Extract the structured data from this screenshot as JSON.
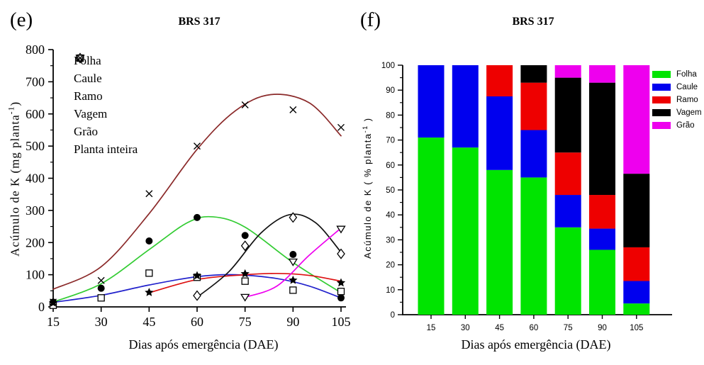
{
  "figure": {
    "background": "#ffffff",
    "text_color": "#000000"
  },
  "chart_data": [
    {
      "type": "scatter",
      "panel_label": "(e)",
      "title": "BRS 317",
      "xlabel": "Dias após emergência (DAE)",
      "ylabel_main": "Acúmulo de K (mg planta",
      "ylabel_sup": "-1",
      "ylabel_end": ")",
      "xlim": [
        15,
        105
      ],
      "ylim": [
        0,
        800
      ],
      "xticks": [
        15,
        30,
        45,
        60,
        75,
        90,
        105
      ],
      "yticks": [
        0,
        100,
        200,
        300,
        400,
        500,
        600,
        700,
        800
      ],
      "y_minor_step": 50,
      "grid": "off",
      "legend_position": "top-left-inside",
      "series": [
        {
          "name": "Folha",
          "marker": "circle-filled",
          "marker_color": "#000000",
          "line_color": "#33cc33",
          "points": [
            [
              15,
              15
            ],
            [
              30,
              58
            ],
            [
              45,
              205
            ],
            [
              60,
              278
            ],
            [
              75,
              222
            ],
            [
              90,
              163
            ],
            [
              105,
              28
            ]
          ],
          "curve": [
            [
              15,
              15
            ],
            [
              30,
              72
            ],
            [
              45,
              178
            ],
            [
              57,
              262
            ],
            [
              65,
              280
            ],
            [
              75,
              248
            ],
            [
              90,
              138
            ],
            [
              105,
              44
            ]
          ]
        },
        {
          "name": "Caule",
          "marker": "square-open",
          "marker_color": "#000000",
          "line_color": "#2222cc",
          "points": [
            [
              15,
              5
            ],
            [
              30,
              28
            ],
            [
              45,
              105
            ],
            [
              60,
              92
            ],
            [
              75,
              80
            ],
            [
              90,
              52
            ],
            [
              105,
              48
            ]
          ],
          "curve": [
            [
              15,
              14
            ],
            [
              30,
              36
            ],
            [
              45,
              68
            ],
            [
              60,
              94
            ],
            [
              72,
              100
            ],
            [
              85,
              88
            ],
            [
              95,
              65
            ],
            [
              105,
              28
            ]
          ]
        },
        {
          "name": "Ramo",
          "marker": "star-filled",
          "marker_color": "#000000",
          "line_color": "#dd1111",
          "points": [
            [
              15,
              12
            ],
            [
              45,
              45
            ],
            [
              60,
              97
            ],
            [
              75,
              103
            ],
            [
              90,
              83
            ],
            [
              105,
              75
            ]
          ],
          "curve": [
            [
              45,
              44
            ],
            [
              60,
              85
            ],
            [
              75,
              100
            ],
            [
              85,
              104
            ],
            [
              95,
              98
            ],
            [
              105,
              80
            ]
          ]
        },
        {
          "name": "Vagem",
          "marker": "diamond-open",
          "marker_color": "#000000",
          "line_color": "#111111",
          "points": [
            [
              60,
              35
            ],
            [
              75,
              190
            ],
            [
              90,
              278
            ],
            [
              105,
              165
            ]
          ],
          "curve": [
            [
              60,
              30
            ],
            [
              70,
              110
            ],
            [
              80,
              230
            ],
            [
              89,
              287
            ],
            [
              97,
              262
            ],
            [
              105,
              170
            ]
          ]
        },
        {
          "name": "Grão",
          "marker": "triangle-down-open",
          "marker_color": "#000000",
          "line_color": "#ee00ee",
          "points": [
            [
              75,
              30
            ],
            [
              90,
              140
            ],
            [
              105,
              242
            ]
          ],
          "curve": [
            [
              75,
              30
            ],
            [
              85,
              65
            ],
            [
              95,
              160
            ],
            [
              105,
              245
            ]
          ]
        },
        {
          "name": "Planta inteira",
          "marker": "x-cross",
          "marker_color": "#000000",
          "line_color": "#8b2a2a",
          "points": [
            [
              15,
              15
            ],
            [
              30,
              82
            ],
            [
              45,
              352
            ],
            [
              60,
              500
            ],
            [
              75,
              628
            ],
            [
              90,
              613
            ],
            [
              105,
              558
            ]
          ],
          "curve": [
            [
              15,
              55
            ],
            [
              30,
              125
            ],
            [
              45,
              290
            ],
            [
              60,
              490
            ],
            [
              72,
              610
            ],
            [
              83,
              660
            ],
            [
              95,
              635
            ],
            [
              105,
              532
            ]
          ]
        }
      ]
    },
    {
      "type": "bar",
      "stacked": true,
      "panel_label": "(f)",
      "title": "BRS 317",
      "xlabel": "Dias após emergência (DAE)",
      "ylabel_main": "Acúmulo de K ( % planta",
      "ylabel_sup": "-1",
      "ylabel_end": " )",
      "categories": [
        "15",
        "30",
        "45",
        "60",
        "75",
        "90",
        "105"
      ],
      "ylim": [
        0,
        100
      ],
      "yticks": [
        0,
        10,
        20,
        30,
        40,
        50,
        60,
        70,
        80,
        90,
        100
      ],
      "y_minor_step": 5,
      "grid": "off",
      "legend_position": "right-outside",
      "series": [
        {
          "name": "Folha",
          "color": "#00e400",
          "values": [
            71,
            67,
            58,
            55,
            35,
            26,
            4.5
          ]
        },
        {
          "name": "Caule",
          "color": "#0000ee",
          "values": [
            29,
            33,
            29.5,
            19,
            13,
            8.5,
            9
          ]
        },
        {
          "name": "Ramo",
          "color": "#ee0000",
          "values": [
            0,
            0,
            12.5,
            19,
            17,
            13.5,
            13.5
          ]
        },
        {
          "name": "Vagem",
          "color": "#000000",
          "values": [
            0,
            0,
            0,
            7,
            30,
            45,
            29.5
          ]
        },
        {
          "name": "Grão",
          "color": "#ee00ee",
          "values": [
            0,
            0,
            0,
            0,
            5,
            7,
            43.5
          ]
        }
      ]
    }
  ]
}
